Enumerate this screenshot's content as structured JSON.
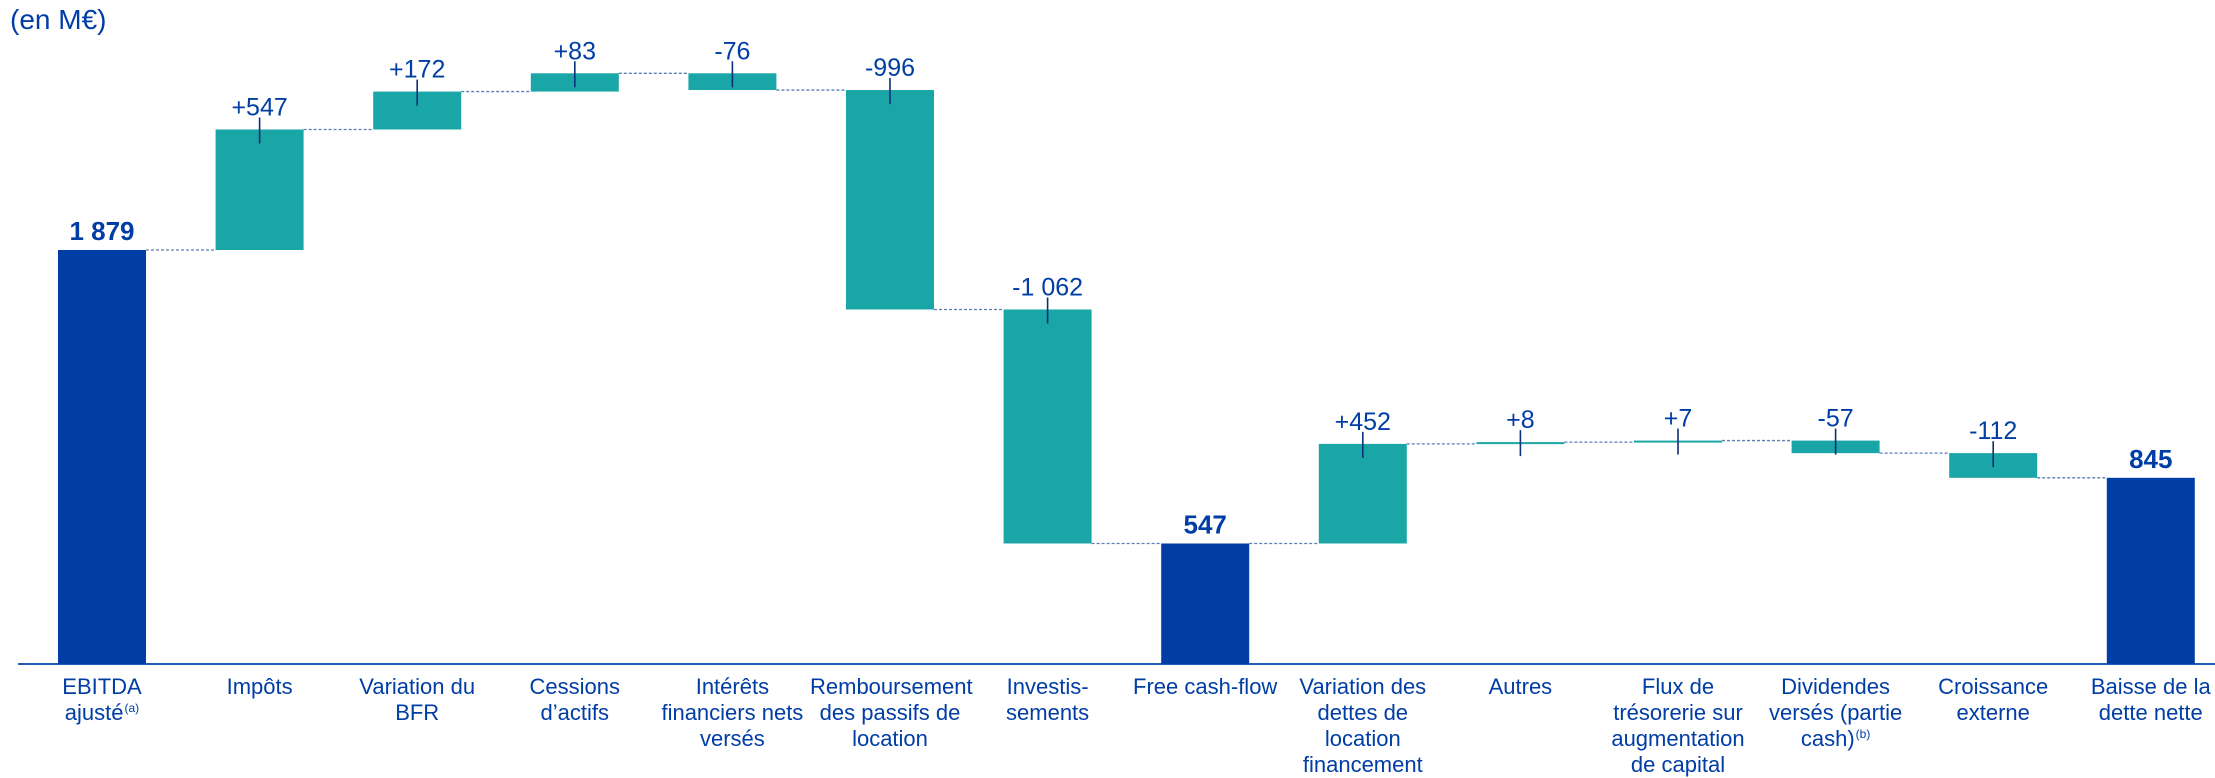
{
  "unit_label": "(en M€)",
  "colors": {
    "total": "#003da5",
    "delta": "#1aa6a6",
    "text": "#003da5",
    "connector": "#5a7fb5"
  },
  "chart_data": {
    "type": "bar",
    "subtype": "waterfall",
    "unit": "(en M€)",
    "ylim": [
      0,
      2700
    ],
    "grid": false,
    "legend": "none",
    "categories": [
      {
        "label": "EBITDA ajusté",
        "sup": "(a)"
      },
      {
        "label": "Impôts"
      },
      {
        "label": "Variation du BFR"
      },
      {
        "label": "Cessions d’actifs"
      },
      {
        "label": "Intérêts financiers nets versés"
      },
      {
        "label": "Remboursement des passifs de location"
      },
      {
        "label": "Investis-sements"
      },
      {
        "label": "Free cash-flow"
      },
      {
        "label": "Variation des dettes de location financement"
      },
      {
        "label": "Autres"
      },
      {
        "label": "Flux de trésorerie sur augmentation de capital"
      },
      {
        "label": "Dividendes versés (partie cash)",
        "sup": "(b)"
      },
      {
        "label": "Croissance externe"
      },
      {
        "label": "Baisse de la dette nette"
      }
    ],
    "steps": [
      {
        "kind": "total",
        "value": 1879,
        "label": "1 879"
      },
      {
        "kind": "delta",
        "value": 547,
        "label": "+547"
      },
      {
        "kind": "delta",
        "value": 172,
        "label": "+172"
      },
      {
        "kind": "delta",
        "value": 83,
        "label": "+83"
      },
      {
        "kind": "delta",
        "value": -76,
        "label": "-76"
      },
      {
        "kind": "delta",
        "value": -996,
        "label": "-996"
      },
      {
        "kind": "delta",
        "value": -1062,
        "label": "-1 062"
      },
      {
        "kind": "total",
        "value": 547,
        "label": "547"
      },
      {
        "kind": "delta",
        "value": 452,
        "label": "+452"
      },
      {
        "kind": "delta",
        "value": 8,
        "label": "+8"
      },
      {
        "kind": "delta",
        "value": 7,
        "label": "+7"
      },
      {
        "kind": "delta",
        "value": -57,
        "label": "-57"
      },
      {
        "kind": "delta",
        "value": -112,
        "label": "-112"
      },
      {
        "kind": "total",
        "value": 845,
        "label": "845"
      }
    ]
  }
}
